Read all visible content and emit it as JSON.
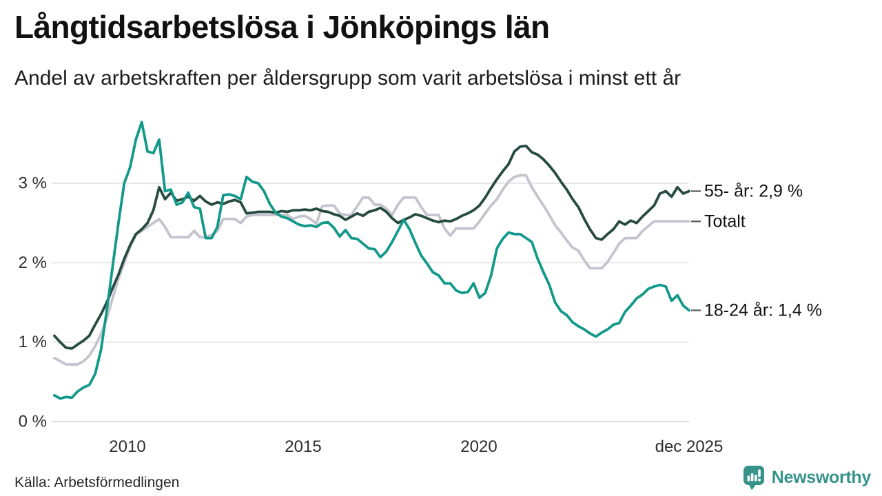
{
  "header": {
    "title": "Långtidsarbetslösa i Jönköpings län",
    "subtitle": "Andel av arbetskraften per åldersgrupp som varit arbetslösa i minst ett år"
  },
  "footer": {
    "source": "Källa: Arbetsförmedlingen",
    "brand": "Newsworthy",
    "brand_icon": "newsworthy-chart-bubble-icon",
    "brand_color": "#35938A"
  },
  "colors": {
    "grid": "#e8e8ea",
    "axis_zero": "#d9d9db",
    "tick_text": "#2e2e2e",
    "annotation_tick": "#58595b"
  },
  "chart_data": {
    "type": "line",
    "title": "Långtidsarbetslösa i Jönköpings län",
    "subtitle": "Andel av arbetskraften per åldersgrupp som varit arbetslösa i minst ett år",
    "xlabel": "",
    "ylabel": "",
    "x_unit": "decimal_year_monthly_samples",
    "x_start": 2007.92,
    "x_end": 2025.98,
    "n_points": 110,
    "xlim": [
      2007.9,
      2025.98
    ],
    "ylim": [
      0,
      3.9
    ],
    "grid": "horizontal",
    "legend_position": "right-end-annotations",
    "y_ticks": [
      {
        "value": 0,
        "label": "0 %"
      },
      {
        "value": 1,
        "label": "1 %"
      },
      {
        "value": 2,
        "label": "2 %"
      },
      {
        "value": 3,
        "label": "3 %"
      }
    ],
    "x_ticks": [
      {
        "value": 2010,
        "label": "2010"
      },
      {
        "value": 2015,
        "label": "2015"
      },
      {
        "value": 2020,
        "label": "2020"
      },
      {
        "value": 2025.98,
        "label": "dec 2025"
      }
    ],
    "series": [
      {
        "id": "55-ar",
        "name": "55- år",
        "end_label": "55- år: 2,9 %",
        "end_value": 2.9,
        "color": "#274B41",
        "values": [
          1.08,
          1.0,
          0.93,
          0.92,
          0.97,
          1.02,
          1.08,
          1.22,
          1.35,
          1.5,
          1.68,
          1.85,
          2.05,
          2.22,
          2.36,
          2.42,
          2.5,
          2.66,
          2.95,
          2.8,
          2.88,
          2.78,
          2.8,
          2.83,
          2.78,
          2.84,
          2.77,
          2.73,
          2.76,
          2.74,
          2.77,
          2.79,
          2.76,
          2.62,
          2.63,
          2.64,
          2.64,
          2.64,
          2.63,
          2.65,
          2.64,
          2.66,
          2.66,
          2.67,
          2.66,
          2.68,
          2.65,
          2.64,
          2.61,
          2.59,
          2.54,
          2.58,
          2.62,
          2.59,
          2.64,
          2.66,
          2.69,
          2.64,
          2.56,
          2.5,
          2.54,
          2.57,
          2.61,
          2.59,
          2.56,
          2.53,
          2.51,
          2.53,
          2.52,
          2.55,
          2.59,
          2.62,
          2.66,
          2.72,
          2.82,
          2.94,
          3.05,
          3.15,
          3.24,
          3.4,
          3.46,
          3.47,
          3.39,
          3.36,
          3.3,
          3.22,
          3.13,
          3.02,
          2.92,
          2.8,
          2.7,
          2.55,
          2.42,
          2.31,
          2.29,
          2.36,
          2.42,
          2.52,
          2.48,
          2.53,
          2.5,
          2.58,
          2.65,
          2.72,
          2.87,
          2.9,
          2.83,
          2.95,
          2.87,
          2.9
        ]
      },
      {
        "id": "totalt",
        "name": "Totalt",
        "end_label": "Totalt",
        "end_value": 2.5,
        "color": "#C5C3CD",
        "values": [
          0.8,
          0.76,
          0.72,
          0.72,
          0.72,
          0.76,
          0.83,
          0.95,
          1.1,
          1.3,
          1.55,
          1.8,
          2.0,
          2.2,
          2.35,
          2.4,
          2.45,
          2.5,
          2.55,
          2.45,
          2.32,
          2.32,
          2.32,
          2.32,
          2.4,
          2.32,
          2.32,
          2.35,
          2.4,
          2.55,
          2.55,
          2.55,
          2.5,
          2.58,
          2.6,
          2.6,
          2.6,
          2.6,
          2.6,
          2.6,
          2.6,
          2.55,
          2.58,
          2.59,
          2.55,
          2.49,
          2.71,
          2.72,
          2.72,
          2.62,
          2.6,
          2.6,
          2.71,
          2.82,
          2.82,
          2.73,
          2.73,
          2.68,
          2.6,
          2.73,
          2.82,
          2.82,
          2.82,
          2.7,
          2.6,
          2.6,
          2.6,
          2.43,
          2.34,
          2.43,
          2.43,
          2.43,
          2.43,
          2.52,
          2.62,
          2.72,
          2.8,
          2.92,
          3.02,
          3.08,
          3.1,
          3.1,
          2.95,
          2.83,
          2.72,
          2.6,
          2.47,
          2.38,
          2.28,
          2.19,
          2.15,
          2.03,
          1.93,
          1.93,
          1.93,
          2.01,
          2.12,
          2.24,
          2.31,
          2.31,
          2.31,
          2.4,
          2.46,
          2.52,
          2.52,
          2.52,
          2.52,
          2.52,
          2.52,
          2.52
        ]
      },
      {
        "id": "18-24-ar",
        "name": "18-24 år",
        "end_label": "18-24 år: 1,4 %",
        "end_value": 1.4,
        "color": "#13998A",
        "values": [
          0.33,
          0.29,
          0.31,
          0.3,
          0.38,
          0.43,
          0.46,
          0.6,
          0.9,
          1.4,
          1.95,
          2.5,
          3.0,
          3.2,
          3.55,
          3.77,
          3.4,
          3.38,
          3.55,
          2.9,
          2.92,
          2.73,
          2.76,
          2.88,
          2.7,
          2.68,
          2.31,
          2.31,
          2.45,
          2.85,
          2.86,
          2.84,
          2.8,
          3.08,
          3.02,
          3.0,
          2.9,
          2.74,
          2.63,
          2.58,
          2.56,
          2.52,
          2.48,
          2.46,
          2.47,
          2.45,
          2.5,
          2.51,
          2.44,
          2.33,
          2.41,
          2.31,
          2.3,
          2.24,
          2.18,
          2.17,
          2.07,
          2.14,
          2.26,
          2.4,
          2.54,
          2.42,
          2.25,
          2.09,
          1.99,
          1.88,
          1.84,
          1.74,
          1.74,
          1.65,
          1.62,
          1.63,
          1.74,
          1.56,
          1.62,
          1.84,
          2.18,
          2.3,
          2.38,
          2.36,
          2.36,
          2.31,
          2.26,
          2.05,
          1.88,
          1.72,
          1.5,
          1.39,
          1.34,
          1.25,
          1.2,
          1.16,
          1.11,
          1.07,
          1.12,
          1.16,
          1.22,
          1.24,
          1.38,
          1.46,
          1.55,
          1.6,
          1.67,
          1.7,
          1.72,
          1.7,
          1.52,
          1.59,
          1.46,
          1.4
        ]
      }
    ]
  }
}
